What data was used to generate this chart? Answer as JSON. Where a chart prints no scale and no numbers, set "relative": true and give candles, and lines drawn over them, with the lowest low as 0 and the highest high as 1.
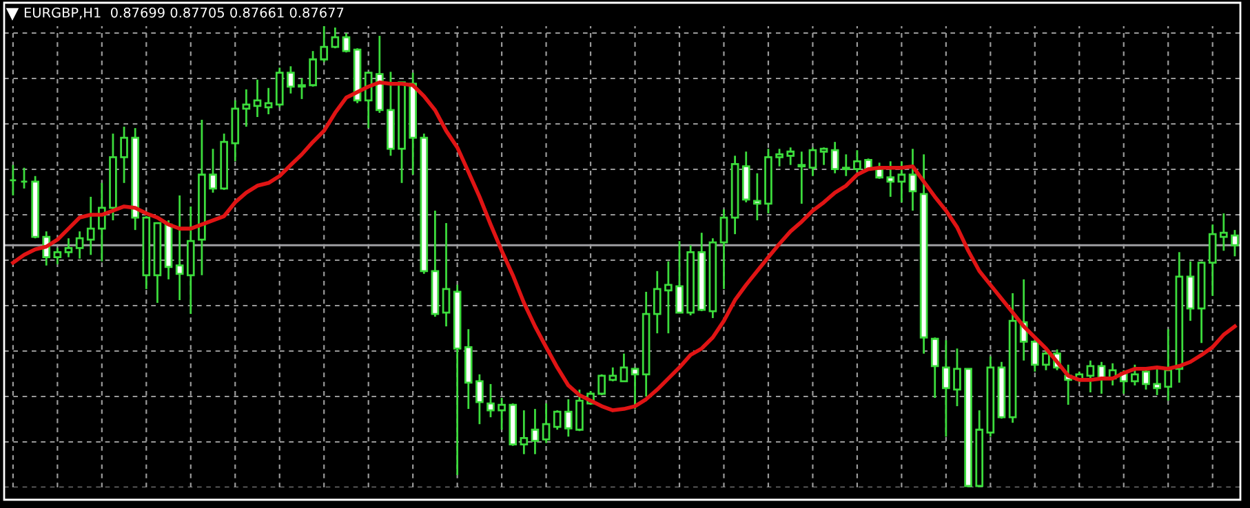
{
  "chart_data": {
    "type": "candlestick",
    "title": "EURGBP,H1  0.87699 0.87705 0.87661 0.87677",
    "relative": true,
    "grid": true,
    "categories": [
      null,
      null,
      null,
      null,
      null,
      null,
      null,
      null,
      null,
      null,
      null,
      null,
      null,
      null,
      null,
      null,
      null,
      null,
      null,
      null,
      null,
      null,
      null,
      null,
      null,
      null,
      null,
      null,
      null,
      null,
      null,
      null,
      null,
      null,
      null,
      null,
      null,
      null,
      null,
      null,
      null,
      null,
      null,
      null,
      null,
      null,
      null,
      null,
      null,
      null,
      null,
      null,
      null,
      null,
      null,
      null,
      null,
      null,
      null,
      null,
      null,
      null,
      null,
      null,
      null,
      null,
      null,
      null,
      null,
      null,
      null,
      null,
      null,
      null,
      null,
      null,
      null,
      null,
      null,
      null,
      null,
      null,
      null,
      null,
      null,
      null,
      null,
      null,
      null,
      null,
      null,
      null,
      null,
      null,
      null,
      null,
      null,
      null,
      null,
      null,
      null,
      null,
      null,
      null,
      null,
      null,
      null,
      null,
      null,
      null,
      null
    ],
    "ref_lines": [
      {
        "axis": "y",
        "value": 0.525,
        "color": "#a0a0a4"
      }
    ],
    "series": [
      {
        "color": "#3cdc3c",
        "ohlc": [
          [
            0.666,
            0.699,
            0.633,
            0.666
          ],
          [
            0.663,
            0.693,
            0.648,
            0.663
          ],
          [
            0.663,
            0.675,
            0.54,
            0.543
          ],
          [
            0.543,
            0.555,
            0.481,
            0.499
          ],
          [
            0.499,
            0.519,
            0.484,
            0.51
          ],
          [
            0.51,
            0.54,
            0.499,
            0.519
          ],
          [
            0.519,
            0.555,
            0.496,
            0.54
          ],
          [
            0.537,
            0.63,
            0.504,
            0.561
          ],
          [
            0.561,
            0.66,
            0.49,
            0.606
          ],
          [
            0.606,
            0.767,
            0.579,
            0.716
          ],
          [
            0.716,
            0.782,
            0.66,
            0.758
          ],
          [
            0.758,
            0.779,
            0.558,
            0.585
          ],
          [
            0.46,
            0.588,
            0.43,
            0.585
          ],
          [
            0.46,
            0.573,
            0.4,
            0.573
          ],
          [
            0.57,
            0.579,
            0.451,
            0.478
          ],
          [
            0.481,
            0.633,
            0.406,
            0.463
          ],
          [
            0.46,
            0.609,
            0.376,
            0.534
          ],
          [
            0.537,
            0.797,
            0.46,
            0.678
          ],
          [
            0.678,
            0.734,
            0.639,
            0.648
          ],
          [
            0.648,
            0.767,
            0.645,
            0.749
          ],
          [
            0.746,
            0.839,
            0.707,
            0.821
          ],
          [
            0.821,
            0.863,
            0.782,
            0.83
          ],
          [
            0.827,
            0.884,
            0.803,
            0.839
          ],
          [
            0.824,
            0.866,
            0.809,
            0.833
          ],
          [
            0.83,
            0.91,
            0.824,
            0.899
          ],
          [
            0.899,
            0.913,
            0.854,
            0.869
          ],
          [
            0.869,
            0.887,
            0.842,
            0.872
          ],
          [
            0.872,
            0.946,
            0.869,
            0.928
          ],
          [
            0.928,
            1.0,
            0.922,
            0.955
          ],
          [
            0.955,
            0.997,
            0.952,
            0.976
          ],
          [
            0.976,
            0.985,
            0.943,
            0.946
          ],
          [
            0.949,
            0.952,
            0.833,
            0.839
          ],
          [
            0.839,
            0.901,
            0.779,
            0.899
          ],
          [
            0.896,
            0.979,
            0.812,
            0.818
          ],
          [
            0.818,
            0.901,
            0.719,
            0.734
          ],
          [
            0.734,
            0.878,
            0.66,
            0.878
          ],
          [
            0.875,
            0.899,
            0.678,
            0.758
          ],
          [
            0.758,
            0.767,
            0.463,
            0.469
          ],
          [
            0.469,
            0.6,
            0.37,
            0.376
          ],
          [
            0.379,
            0.573,
            0.349,
            0.43
          ],
          [
            0.424,
            0.439,
            0.027,
            0.301
          ],
          [
            0.304,
            0.343,
            0.17,
            0.227
          ],
          [
            0.23,
            0.245,
            0.137,
            0.185
          ],
          [
            0.182,
            0.224,
            0.152,
            0.167
          ],
          [
            0.167,
            0.194,
            0.125,
            0.179
          ],
          [
            0.179,
            0.182,
            0.09,
            0.093
          ],
          [
            0.093,
            0.167,
            0.072,
            0.107
          ],
          [
            0.125,
            0.17,
            0.072,
            0.101
          ],
          [
            0.104,
            0.182,
            0.096,
            0.137
          ],
          [
            0.131,
            0.167,
            0.125,
            0.164
          ],
          [
            0.164,
            0.191,
            0.11,
            0.128
          ],
          [
            0.125,
            0.212,
            0.122,
            0.188
          ],
          [
            0.182,
            0.209,
            0.179,
            0.203
          ],
          [
            0.203,
            0.245,
            0.2,
            0.242
          ],
          [
            0.233,
            0.26,
            0.23,
            0.242
          ],
          [
            0.23,
            0.29,
            0.23,
            0.26
          ],
          [
            0.257,
            0.26,
            0.17,
            0.245
          ],
          [
            0.245,
            0.424,
            0.197,
            0.376
          ],
          [
            0.376,
            0.469,
            0.334,
            0.43
          ],
          [
            0.427,
            0.49,
            0.334,
            0.439
          ],
          [
            0.436,
            0.534,
            0.379,
            0.379
          ],
          [
            0.379,
            0.525,
            0.373,
            0.51
          ],
          [
            0.51,
            0.552,
            0.382,
            0.385
          ],
          [
            0.382,
            0.54,
            0.367,
            0.531
          ],
          [
            0.531,
            0.603,
            0.43,
            0.585
          ],
          [
            0.585,
            0.719,
            0.549,
            0.701
          ],
          [
            0.696,
            0.728,
            0.618,
            0.624
          ],
          [
            0.621,
            0.681,
            0.579,
            0.615
          ],
          [
            0.615,
            0.734,
            0.594,
            0.716
          ],
          [
            0.716,
            0.734,
            0.696,
            0.722
          ],
          [
            0.719,
            0.737,
            0.699,
            0.728
          ],
          [
            0.696,
            0.728,
            0.615,
            0.699
          ],
          [
            0.693,
            0.737,
            0.675,
            0.731
          ],
          [
            0.728,
            0.737,
            0.699,
            0.734
          ],
          [
            0.731,
            0.749,
            0.681,
            0.69
          ],
          [
            0.69,
            0.722,
            0.675,
            0.693
          ],
          [
            0.69,
            0.731,
            0.684,
            0.707
          ],
          [
            0.71,
            0.713,
            0.687,
            0.69
          ],
          [
            0.69,
            0.704,
            0.669,
            0.672
          ],
          [
            0.672,
            0.707,
            0.63,
            0.663
          ],
          [
            0.663,
            0.707,
            0.618,
            0.678
          ],
          [
            0.678,
            0.734,
            0.6,
            0.642
          ],
          [
            0.636,
            0.722,
            0.29,
            0.325
          ],
          [
            0.322,
            0.325,
            0.194,
            0.263
          ],
          [
            0.26,
            0.319,
            0.11,
            0.215
          ],
          [
            0.212,
            0.301,
            0.176,
            0.257
          ],
          [
            0.257,
            0.257,
            0.0,
            0.003
          ],
          [
            0.003,
            0.167,
            0.0,
            0.125
          ],
          [
            0.119,
            0.284,
            0.11,
            0.26
          ],
          [
            0.26,
            0.272,
            0.149,
            0.152
          ],
          [
            0.152,
            0.421,
            0.14,
            0.361
          ],
          [
            0.358,
            0.451,
            0.275,
            0.316
          ],
          [
            0.316,
            0.319,
            0.251,
            0.266
          ],
          [
            0.266,
            0.296,
            0.254,
            0.29
          ],
          [
            0.29,
            0.299,
            0.254,
            0.26
          ],
          [
            0.242,
            0.266,
            0.179,
            0.233
          ],
          [
            0.233,
            0.251,
            0.227,
            0.245
          ],
          [
            0.242,
            0.275,
            0.206,
            0.263
          ],
          [
            0.263,
            0.272,
            0.203,
            0.236
          ],
          [
            0.236,
            0.269,
            0.221,
            0.254
          ],
          [
            0.248,
            0.254,
            0.203,
            0.23
          ],
          [
            0.23,
            0.266,
            0.221,
            0.245
          ],
          [
            0.251,
            0.257,
            0.212,
            0.224
          ],
          [
            0.224,
            0.257,
            0.2,
            0.215
          ],
          [
            0.218,
            0.343,
            0.188,
            0.254
          ],
          [
            0.257,
            0.51,
            0.227,
            0.457
          ],
          [
            0.457,
            0.49,
            0.361,
            0.388
          ],
          [
            0.388,
            0.49,
            0.313,
            0.487
          ],
          [
            0.487,
            0.57,
            0.415,
            0.549
          ],
          [
            0.543,
            0.594,
            0.513,
            0.552
          ],
          [
            0.546,
            0.558,
            0.501,
            0.525
          ]
        ]
      },
      {
        "type": "line",
        "color": "#e01414",
        "values": [
          0.487,
          0.504,
          0.516,
          0.522,
          0.537,
          0.561,
          0.585,
          0.591,
          0.591,
          0.6,
          0.609,
          0.606,
          0.594,
          0.585,
          0.57,
          0.561,
          0.561,
          0.57,
          0.579,
          0.588,
          0.618,
          0.639,
          0.654,
          0.66,
          0.675,
          0.699,
          0.722,
          0.749,
          0.773,
          0.812,
          0.845,
          0.857,
          0.869,
          0.878,
          0.875,
          0.875,
          0.872,
          0.848,
          0.818,
          0.773,
          0.737,
          0.684,
          0.63,
          0.57,
          0.513,
          0.46,
          0.4,
          0.349,
          0.304,
          0.26,
          0.221,
          0.2,
          0.188,
          0.176,
          0.167,
          0.17,
          0.176,
          0.191,
          0.212,
          0.236,
          0.26,
          0.287,
          0.301,
          0.325,
          0.361,
          0.406,
          0.439,
          0.469,
          0.499,
          0.528,
          0.555,
          0.576,
          0.6,
          0.618,
          0.639,
          0.654,
          0.678,
          0.69,
          0.693,
          0.693,
          0.693,
          0.696,
          0.663,
          0.63,
          0.6,
          0.564,
          0.513,
          0.469,
          0.439,
          0.409,
          0.379,
          0.349,
          0.325,
          0.301,
          0.272,
          0.242,
          0.233,
          0.233,
          0.236,
          0.236,
          0.248,
          0.257,
          0.257,
          0.26,
          0.257,
          0.263,
          0.272,
          0.287,
          0.304,
          0.331,
          0.349
        ]
      }
    ]
  }
}
